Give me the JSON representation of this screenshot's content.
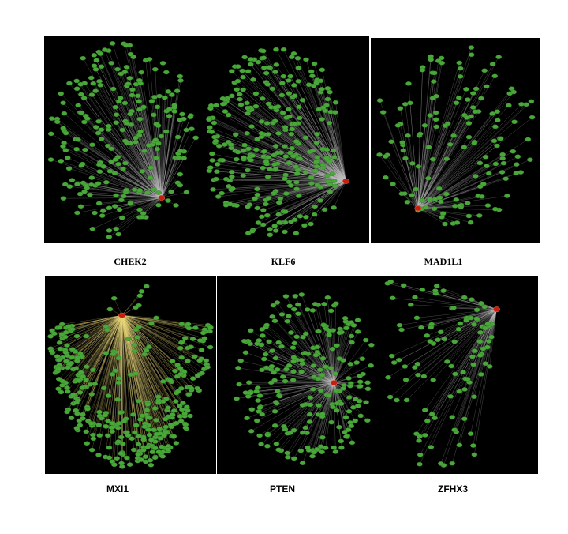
{
  "figure": {
    "panels": [
      {
        "label": "CHEK2"
      },
      {
        "label": "KLF6"
      },
      {
        "label": "MAD1L1"
      },
      {
        "label": "MXI1"
      },
      {
        "label": "PTEN"
      },
      {
        "label": "ZFHX3"
      }
    ],
    "colors": {
      "background": "#000000",
      "node": "#4aa83a",
      "node_stroke": "#2f7a24",
      "hub": "#c81e10",
      "edge": "#bfbfbf",
      "edge_highlight": "#e8d67a"
    }
  }
}
